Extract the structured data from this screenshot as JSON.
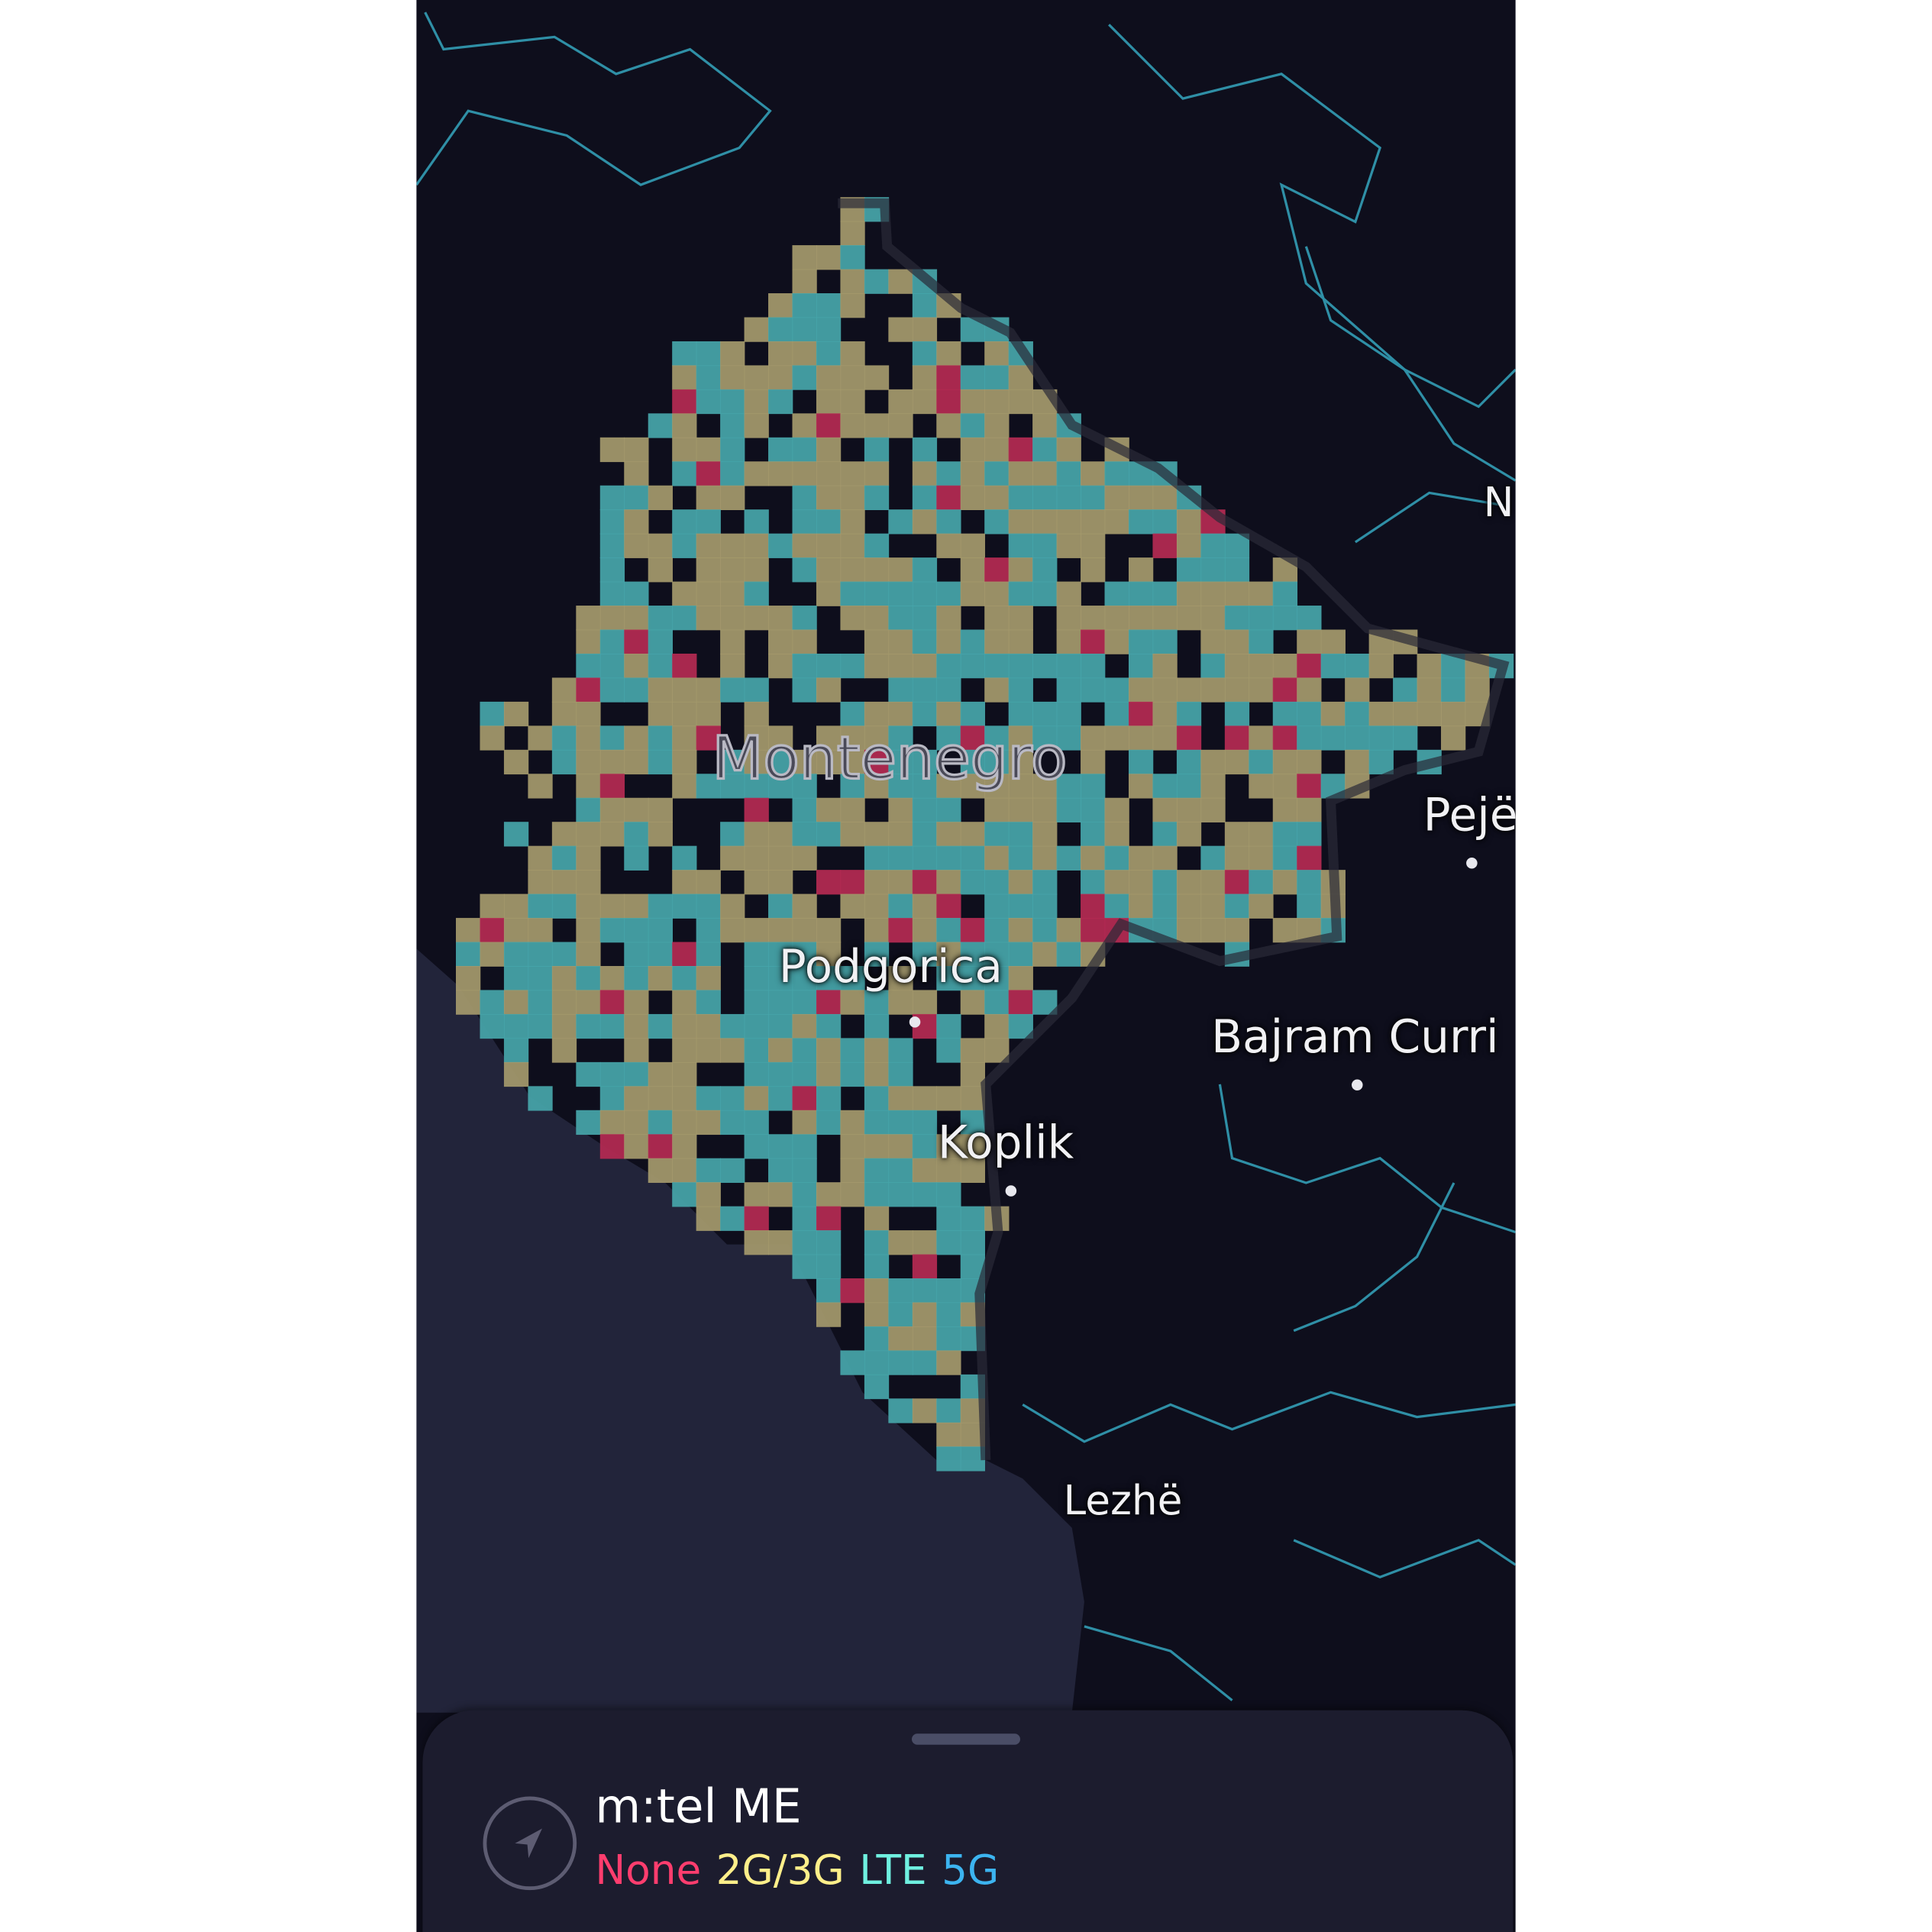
{
  "map": {
    "country_label": "Montenegro",
    "places": [
      {
        "name": "Podgorica",
        "has_dot": true
      },
      {
        "name": "Pejë",
        "has_dot": true
      },
      {
        "name": "Bajram Curri",
        "has_dot": true
      },
      {
        "name": "Koplik",
        "has_dot": true
      },
      {
        "name": "Lezhë",
        "has_dot": false
      },
      {
        "name": "N",
        "has_dot": false
      }
    ],
    "colors": {
      "land": "#0e0e1c",
      "sea": "#22243a",
      "borders": "#2f8fa6",
      "none": "#b52a52",
      "2g3g": "#a59a6c",
      "lte": "#47a6aa"
    }
  },
  "panel": {
    "carrier": "m:tel ME",
    "location_button_icon": "navigation-arrow-icon",
    "legend": [
      {
        "label": "None",
        "color": "#ff3d6e"
      },
      {
        "label": "2G/3G",
        "color": "#ffef8a"
      },
      {
        "label": "LTE",
        "color": "#6ff0e0"
      },
      {
        "label": "5G",
        "color": "#3cb4f0"
      }
    ]
  }
}
